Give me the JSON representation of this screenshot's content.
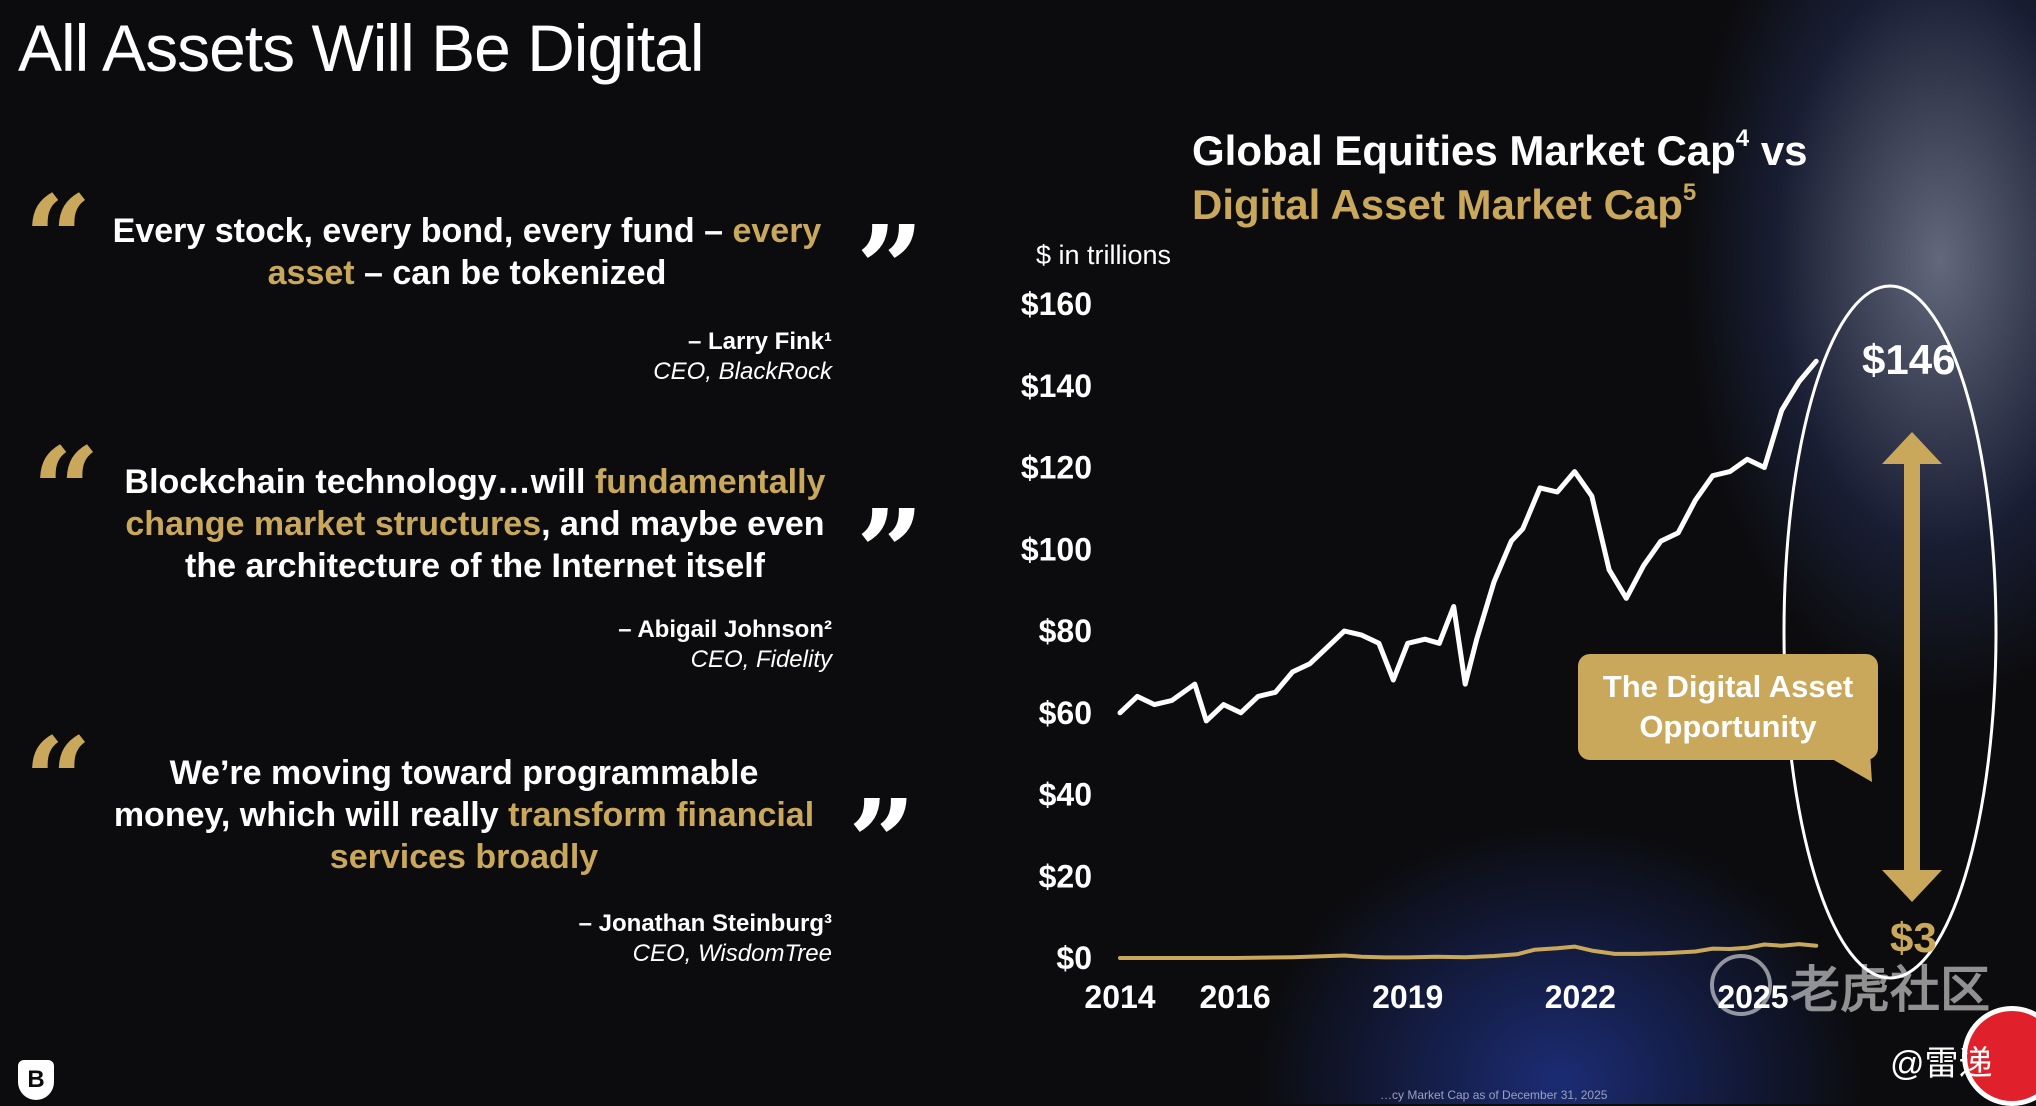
{
  "slide": {
    "title": "All Assets Will Be Digital"
  },
  "quotes": [
    {
      "parts": [
        {
          "text": "Every stock, every bond, every fund – ",
          "highlight": false
        },
        {
          "text": "every asset",
          "highlight": true
        },
        {
          "text": " – can be tokenized",
          "highlight": false
        }
      ],
      "author": "– Larry Fink¹",
      "role": "CEO, BlackRock"
    },
    {
      "parts": [
        {
          "text": "Blockchain technology…will ",
          "highlight": false
        },
        {
          "text": "fundamentally change market structures",
          "highlight": true
        },
        {
          "text": ", and maybe even the architecture of the Internet itself",
          "highlight": false
        }
      ],
      "author": "– Abigail Johnson²",
      "role": "CEO, Fidelity"
    },
    {
      "parts": [
        {
          "text": "We’re moving toward programmable money, which will really ",
          "highlight": false
        },
        {
          "text": "transform financial services broadly",
          "highlight": true
        }
      ],
      "author": "– Jonathan Steinburg³",
      "role": "CEO, WisdomTree"
    }
  ],
  "chart_title": {
    "line1": "Global Equities Market Cap",
    "line1_sup": "4",
    "line1_suffix": " vs",
    "line2": "Digital Asset Market Cap",
    "line2_sup": "5"
  },
  "unit_label": "$ in trillions",
  "callout": {
    "line1": "The Digital Asset",
    "line2": "Opportunity"
  },
  "end_labels": {
    "equities": "$146",
    "digital": "$3"
  },
  "footnote": "…cy Market Cap as of December 31, 2025",
  "watermark": "老虎社区",
  "handle": "@雷递",
  "logo_letter": "B",
  "colors": {
    "gold": "#c9a85c",
    "line": "#ffffff",
    "background": "#0c0c0e"
  },
  "chart_data": {
    "type": "line",
    "ylabel": "$ in trillions",
    "ylim": [
      0,
      160
    ],
    "yticks": [
      {
        "value": 0,
        "label": "$0"
      },
      {
        "value": 20,
        "label": "$20"
      },
      {
        "value": 40,
        "label": "$40"
      },
      {
        "value": 60,
        "label": "$60"
      },
      {
        "value": 80,
        "label": "$80"
      },
      {
        "value": 100,
        "label": "$100"
      },
      {
        "value": 120,
        "label": "$120"
      },
      {
        "value": 140,
        "label": "$140"
      },
      {
        "value": 160,
        "label": "$160"
      }
    ],
    "xlim": [
      2014,
      2026.6
    ],
    "xticks": [
      {
        "value": 2014,
        "label": "2014"
      },
      {
        "value": 2016,
        "label": "2016"
      },
      {
        "value": 2019,
        "label": "2019"
      },
      {
        "value": 2022,
        "label": "2022"
      },
      {
        "value": 2025,
        "label": "2025"
      }
    ],
    "series": [
      {
        "color": "#ffffff",
        "x": [
          2014.0,
          2014.3,
          2014.6,
          2014.9,
          2015.3,
          2015.5,
          2015.8,
          2016.1,
          2016.4,
          2016.7,
          2017.0,
          2017.3,
          2017.6,
          2017.9,
          2018.2,
          2018.5,
          2018.75,
          2019.0,
          2019.3,
          2019.55,
          2019.8,
          2020.0,
          2020.2,
          2020.5,
          2020.8,
          2021.0,
          2021.3,
          2021.6,
          2021.9,
          2022.2,
          2022.5,
          2022.8,
          2023.1,
          2023.4,
          2023.7,
          2024.0,
          2024.3,
          2024.6,
          2024.9,
          2025.2,
          2025.5,
          2025.8,
          2026.1
        ],
        "values": [
          60,
          64,
          62,
          63,
          67,
          58,
          62,
          60,
          64,
          65,
          70,
          72,
          76,
          80,
          79,
          77,
          68,
          77,
          78,
          77,
          86,
          67,
          78,
          92,
          102,
          105,
          115,
          114,
          119,
          113,
          95,
          88,
          96,
          102,
          104,
          112,
          118,
          119,
          122,
          120,
          134,
          141,
          146
        ]
      },
      {
        "color": "#c9a85c",
        "x": [
          2014.0,
          2015.0,
          2016.0,
          2017.0,
          2017.9,
          2018.2,
          2018.6,
          2019.0,
          2019.5,
          2020.0,
          2020.5,
          2020.9,
          2021.2,
          2021.6,
          2021.9,
          2022.2,
          2022.6,
          2023.0,
          2023.5,
          2024.0,
          2024.3,
          2024.6,
          2024.9,
          2025.2,
          2025.5,
          2025.8,
          2026.1
        ],
        "values": [
          0.01,
          0.01,
          0.01,
          0.2,
          0.6,
          0.3,
          0.15,
          0.15,
          0.3,
          0.2,
          0.5,
          0.9,
          2.0,
          2.4,
          2.8,
          1.8,
          1.0,
          1.0,
          1.2,
          1.6,
          2.3,
          2.2,
          2.5,
          3.3,
          3.0,
          3.4,
          3.0
        ]
      }
    ]
  }
}
